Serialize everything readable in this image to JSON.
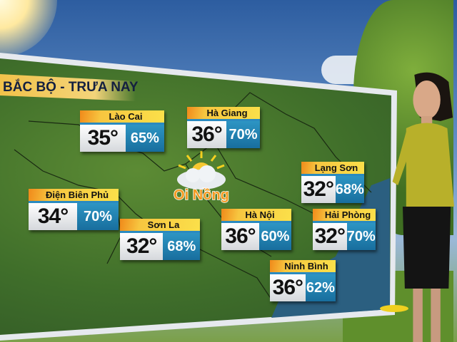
{
  "title": "BẮC BỘ - TRƯA NAY",
  "weather_label": "Oi Nồng",
  "colors": {
    "header_yellow": "#fbe04a",
    "humidity_blue": "#2d95c4",
    "title_text": "#142040"
  },
  "cities": [
    {
      "name": "Lào Cai",
      "temp": "35°",
      "humidity": "65%"
    },
    {
      "name": "Hà Giang",
      "temp": "36°",
      "humidity": "70%"
    },
    {
      "name": "Điện Biên Phủ",
      "temp": "34°",
      "humidity": "70%"
    },
    {
      "name": "Sơn La",
      "temp": "32°",
      "humidity": "68%"
    },
    {
      "name": "Hà Nội",
      "temp": "36°",
      "humidity": "60%"
    },
    {
      "name": "Lạng Sơn",
      "temp": "32°",
      "humidity": "68%"
    },
    {
      "name": "Hải Phòng",
      "temp": "32°",
      "humidity": "70%"
    },
    {
      "name": "Ninh Bình",
      "temp": "36°",
      "humidity": "62%"
    }
  ]
}
